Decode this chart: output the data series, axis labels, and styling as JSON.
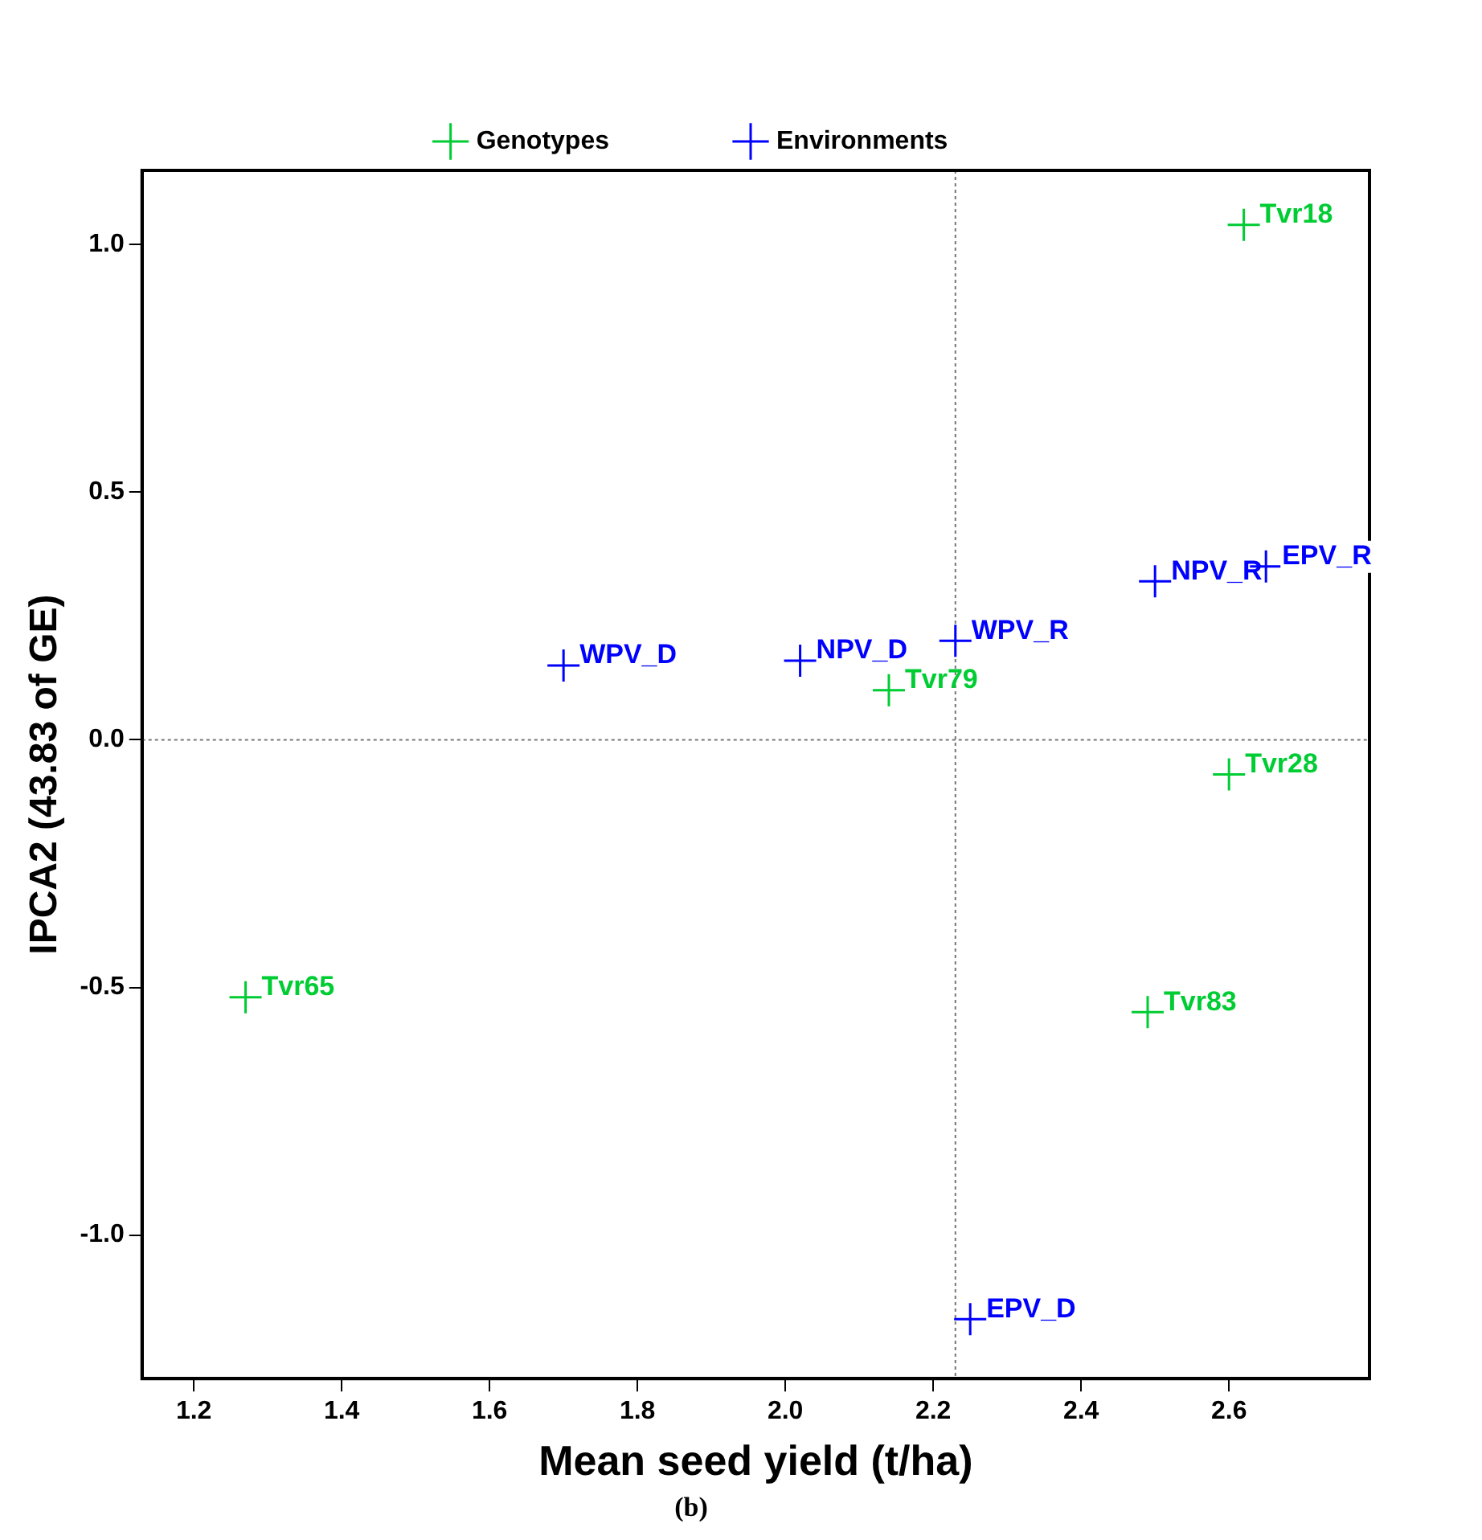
{
  "chart_data": {
    "type": "scatter",
    "xlabel": "Mean seed yield (t/ha)",
    "ylabel": "IPCA2 (43.83 of GE)",
    "xlim": [
      1.13,
      2.79
    ],
    "xticks": [
      {
        "value": 1.2,
        "label": "1.2"
      },
      {
        "value": 1.4,
        "label": "1.4"
      },
      {
        "value": 1.6,
        "label": "1.6"
      },
      {
        "value": 1.8,
        "label": "1.8"
      },
      {
        "value": 2.0,
        "label": "2.0"
      },
      {
        "value": 2.2,
        "label": "2.2"
      },
      {
        "value": 2.4,
        "label": "2.4"
      },
      {
        "value": 2.6,
        "label": "2.6"
      }
    ],
    "ylim": [
      -1.29,
      1.15
    ],
    "yticks": [
      {
        "value": -1.0,
        "label": "-1.0"
      },
      {
        "value": -0.5,
        "label": "-0.5"
      },
      {
        "value": 0.0,
        "label": "0.0"
      },
      {
        "value": 0.5,
        "label": "0.5"
      },
      {
        "value": 1.0,
        "label": "1.0"
      }
    ],
    "grid": false,
    "legend": "top",
    "marker": "cross",
    "series": [
      {
        "name": "Genotypes",
        "color": "#00cc33",
        "x": [
          2.62,
          2.14,
          2.6,
          2.49,
          1.27
        ],
        "values": [
          1.04,
          0.1,
          -0.07,
          -0.55,
          -0.52
        ]
      },
      {
        "name": "Environments",
        "color": "#0000ff",
        "x": [
          2.65,
          2.5,
          2.23,
          2.02,
          1.7,
          2.25
        ],
        "values": [
          0.35,
          0.32,
          0.2,
          0.16,
          0.15,
          -1.17
        ]
      }
    ],
    "ref_lines": [
      {
        "axis": "x",
        "value": 2.23,
        "color": "#777777",
        "line_style": "dotted"
      },
      {
        "axis": "y",
        "value": 0,
        "color": "#777777",
        "line_style": "dotted"
      }
    ],
    "annotations": [
      {
        "text": "Tvr18",
        "x": 2.62,
        "y": 1.04
      },
      {
        "text": "Tvr79",
        "x": 2.14,
        "y": 0.1
      },
      {
        "text": "Tvr28",
        "x": 2.6,
        "y": -0.07
      },
      {
        "text": "Tvr83",
        "x": 2.49,
        "y": -0.55
      },
      {
        "text": "Tvr65",
        "x": 1.27,
        "y": -0.52
      },
      {
        "text": "EPV_R",
        "x": 2.65,
        "y": 0.35
      },
      {
        "text": "NPV_R",
        "x": 2.5,
        "y": 0.32
      },
      {
        "text": "WPV_R",
        "x": 2.23,
        "y": 0.2
      },
      {
        "text": "NPV_D",
        "x": 2.02,
        "y": 0.16
      },
      {
        "text": "WPV_D",
        "x": 1.7,
        "y": 0.15
      },
      {
        "text": "EPV_D",
        "x": 2.25,
        "y": -1.17
      },
      "(b)"
    ]
  }
}
